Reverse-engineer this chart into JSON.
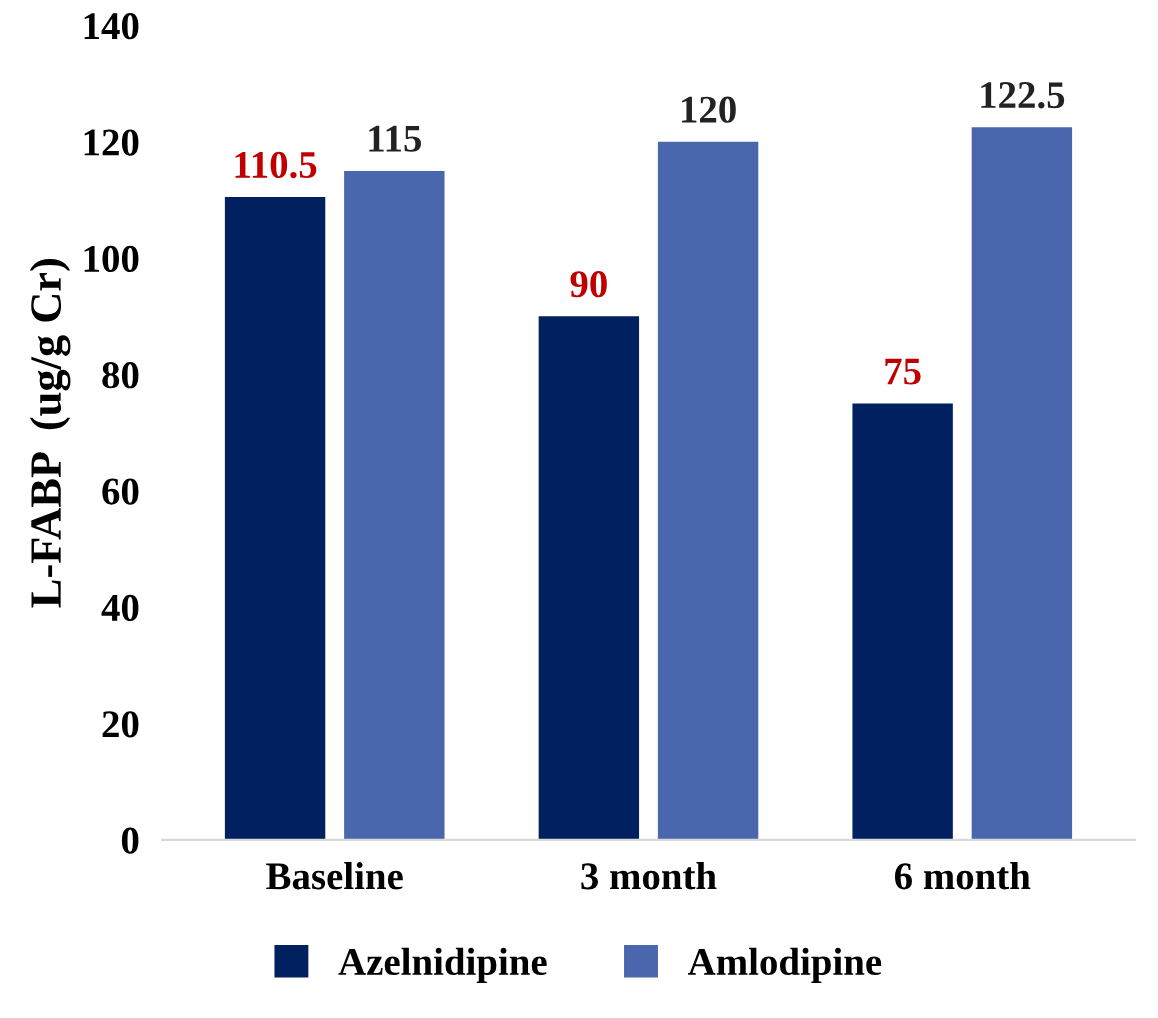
{
  "chart_data": {
    "type": "bar",
    "ylabel": "L-FABP  (ug/g Cr)",
    "categories": [
      "Baseline",
      "3 month",
      "6 month"
    ],
    "series": [
      {
        "name": "Azelnidipine",
        "color": "#002060",
        "values": [
          110.5,
          90,
          75
        ]
      },
      {
        "name": "Amlodipine",
        "color": "#4a66ac",
        "values": [
          115,
          120,
          122.5
        ]
      }
    ],
    "ylim": [
      0,
      140
    ],
    "yticks": [
      0,
      20,
      40,
      60,
      80,
      100,
      120,
      140
    ],
    "data_labels": true,
    "grid": false,
    "legend": "bottom"
  }
}
